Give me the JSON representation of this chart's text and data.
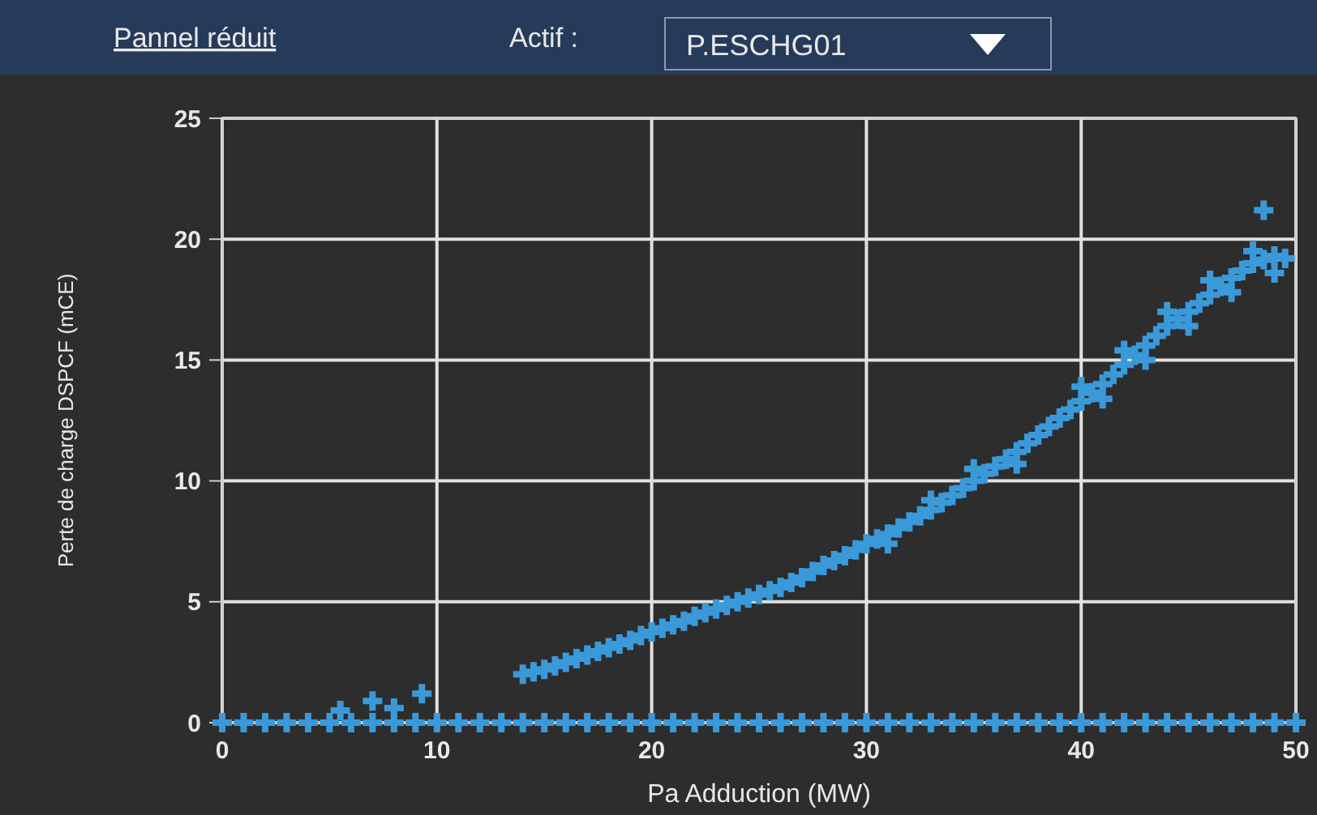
{
  "chart_data": {
    "type": "scatter",
    "xlabel": "Pa Adduction (MW)",
    "ylabel": "Perte de charge DSPCF (mCE)",
    "annotations": [
      "Pannel réduit",
      "Actif :",
      "P.ESCHG01"
    ],
    "xlim": [
      0,
      50
    ],
    "ylim": [
      0,
      25
    ],
    "xticks": [
      0,
      10,
      20,
      30,
      40,
      50
    ],
    "yticks": [
      0,
      5,
      10,
      15,
      20,
      25
    ],
    "grid": true,
    "marker": "cross",
    "series": [
      {
        "color": "#3a9ad9",
        "x": [
          0,
          1,
          2,
          3,
          4,
          5,
          6,
          7,
          8,
          9,
          10,
          11,
          12,
          13,
          14,
          15,
          16,
          17,
          18,
          19,
          20,
          21,
          22,
          23,
          24,
          25,
          26,
          27,
          28,
          29,
          30,
          31,
          32,
          33,
          34,
          35,
          36,
          37,
          38,
          39,
          40,
          41,
          42,
          43,
          44,
          45,
          46,
          47,
          48,
          49,
          50
        ],
        "values": [
          0,
          0,
          0,
          0,
          0,
          0,
          0,
          0,
          0,
          0,
          0,
          0,
          0,
          0,
          0,
          0,
          0,
          0,
          0,
          0,
          0,
          0,
          0,
          0,
          0,
          0,
          0,
          0,
          0,
          0,
          0,
          0,
          0,
          0,
          0,
          0,
          0,
          0,
          0,
          0,
          0,
          0,
          0,
          0,
          0,
          0,
          0,
          0,
          0,
          0,
          0
        ]
      },
      {
        "color": "#3a9ad9",
        "x": [
          5.5,
          7,
          8,
          9.3
        ],
        "values": [
          0.5,
          0.9,
          0.6,
          1.2
        ]
      },
      {
        "color": "#3a9ad9",
        "x": [
          14,
          14.5,
          15,
          15.5,
          16,
          16.5,
          17,
          17.5,
          18,
          18.5,
          19,
          19.5,
          20,
          20.5,
          21,
          21.5,
          22,
          22.5,
          23,
          23.5,
          24,
          24.5,
          25,
          25.5,
          26,
          26.5,
          27,
          27.5,
          28,
          28.5,
          29,
          29.5,
          30,
          30.5,
          31,
          31.5,
          32,
          32.5,
          33,
          33.5,
          34,
          34.5,
          35,
          35.5,
          36,
          36.5,
          37,
          37.5,
          38,
          38.5,
          39,
          39.5,
          40,
          40.5,
          41,
          41.5,
          42,
          42.5,
          43,
          43.5,
          44,
          44.5,
          45,
          45.5,
          46,
          46.5,
          47,
          47.5,
          48,
          48.5,
          49,
          49.5
        ],
        "values": [
          2.0,
          2.1,
          2.2,
          2.35,
          2.5,
          2.65,
          2.8,
          2.95,
          3.1,
          3.25,
          3.4,
          3.6,
          3.75,
          3.9,
          4.05,
          4.2,
          4.4,
          4.55,
          4.7,
          4.85,
          5.0,
          5.15,
          5.3,
          5.45,
          5.6,
          5.8,
          6.0,
          6.25,
          6.5,
          6.7,
          6.9,
          7.15,
          7.4,
          7.6,
          7.8,
          8.05,
          8.3,
          8.55,
          8.8,
          9.1,
          9.4,
          9.7,
          10.0,
          10.3,
          10.6,
          10.9,
          11.2,
          11.55,
          11.9,
          12.25,
          12.6,
          12.95,
          13.3,
          13.65,
          14.0,
          14.4,
          14.8,
          15.2,
          15.6,
          16.0,
          16.4,
          16.7,
          17.0,
          17.35,
          17.7,
          18.05,
          18.4,
          18.7,
          19.0,
          19.15,
          19.3,
          19.2
        ]
      },
      {
        "color": "#3a9ad9",
        "x": [
          40,
          41,
          42,
          43,
          44,
          45,
          46,
          47,
          48,
          49,
          35,
          37,
          33,
          31
        ],
        "values": [
          13.9,
          13.4,
          15.4,
          15.0,
          17.0,
          16.4,
          18.3,
          17.8,
          19.5,
          18.6,
          10.5,
          10.7,
          9.2,
          7.4
        ]
      },
      {
        "color": "#3a9ad9",
        "x": [
          48.5
        ],
        "values": [
          21.2
        ]
      }
    ]
  }
}
